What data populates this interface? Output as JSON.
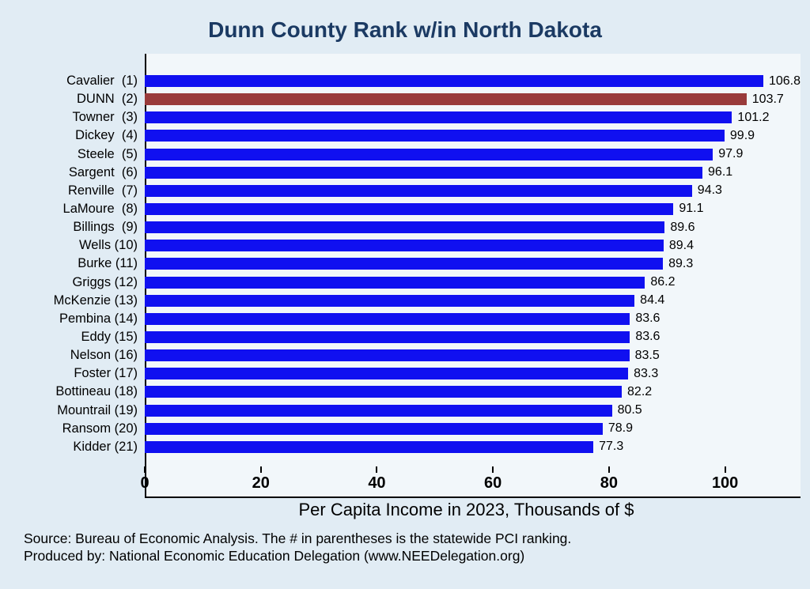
{
  "title": "Dunn County Rank w/in North Dakota",
  "colors": {
    "background": "#e1ecf4",
    "plot_background": "#f2f7fa",
    "bar": "#1010f0",
    "highlight_bar": "#993b3b",
    "title_text": "#1b3a63",
    "axis": "#000000"
  },
  "notes": {
    "source": "Source: Bureau of Economic Analysis. The # in parentheses is the statewide PCI ranking.",
    "produced_by": "Produced by: National Economic Education Delegation (www.NEEDelegation.org)"
  },
  "chart_data": {
    "type": "bar",
    "orientation": "horizontal",
    "title": "Dunn County Rank w/in North Dakota",
    "xlabel": "Per Capita Income in 2023, Thousands of $",
    "ylabel": "",
    "xlim": [
      0,
      113
    ],
    "x_ticks": [
      0,
      20,
      40,
      60,
      80,
      100
    ],
    "grid": false,
    "legend": false,
    "highlight_index": 1,
    "highlight_category": "DUNN (2)",
    "categories": [
      "Cavalier  (1)",
      "DUNN  (2)",
      "Towner  (3)",
      "Dickey  (4)",
      "Steele  (5)",
      "Sargent  (6)",
      "Renville  (7)",
      "LaMoure  (8)",
      "Billings  (9)",
      "Wells (10)",
      "Burke (11)",
      "Griggs (12)",
      "McKenzie (13)",
      "Pembina (14)",
      "Eddy (15)",
      "Nelson (16)",
      "Foster (17)",
      "Bottineau (18)",
      "Mountrail (19)",
      "Ransom (20)",
      "Kidder (21)"
    ],
    "values": [
      106.8,
      103.7,
      101.2,
      99.9,
      97.9,
      96.1,
      94.3,
      91.1,
      89.6,
      89.4,
      89.3,
      86.2,
      84.4,
      83.6,
      83.6,
      83.5,
      83.3,
      82.2,
      80.5,
      78.9,
      77.3
    ]
  }
}
